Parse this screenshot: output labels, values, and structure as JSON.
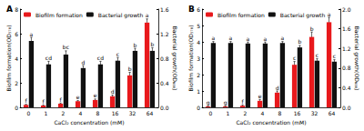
{
  "chart_data": [
    {
      "type": "bar",
      "title": "A",
      "categories": [
        "0",
        "1",
        "2",
        "4",
        "8",
        "16",
        "32",
        "64"
      ],
      "xlabel": "CaCl₂ concentration (mM)",
      "ylabel": "Biofilm formation(OD₅₇₀)",
      "y2label": "Bacterial growth(OD₆₀₀)",
      "ylim": [
        0,
        8
      ],
      "yticks": [
        0,
        2,
        4,
        6,
        8
      ],
      "y2lim": [
        0,
        1.6
      ],
      "y2ticks": [
        {
          "value": 0,
          "label": "0.0"
        },
        0.4,
        0.8,
        1.2,
        1.6
      ],
      "grid": false,
      "legend": "top-left",
      "series": [
        {
          "name": "Biofilm formation",
          "color": "#e8191c",
          "values": [
            0.2,
            0.15,
            0.3,
            0.5,
            0.6,
            0.9,
            2.6,
            6.9
          ],
          "errors": [
            0.05,
            0.05,
            0.05,
            0.05,
            0.08,
            0.1,
            0.25,
            0.3
          ],
          "annotations": [
            "f",
            "f",
            "f",
            "e",
            "e",
            "d",
            "b",
            "a"
          ]
        },
        {
          "name": "Bacterial growth",
          "color": "#111111",
          "axis": "y2",
          "values": [
            1.08,
            0.7,
            0.86,
            0.64,
            0.7,
            0.76,
            0.92,
            0.92
          ],
          "errors": [
            0.06,
            0.05,
            0.06,
            0.04,
            0.05,
            0.05,
            0.04,
            0.05
          ],
          "annotations": [
            "a",
            "cd",
            "bc",
            "d",
            "cd",
            "c",
            "b",
            "b"
          ]
        }
      ]
    },
    {
      "type": "bar",
      "title": "B",
      "categories": [
        "0",
        "1",
        "2",
        "4",
        "8",
        "16",
        "32",
        "64"
      ],
      "xlabel": "CaCl₂ concentration (mM)",
      "ylabel": "Biofilm formation(OD₅₇₀)",
      "y2label": "Bacterial growth(OD₆₀₀)",
      "ylim": [
        0,
        6
      ],
      "yticks": [
        0,
        1,
        2,
        3,
        4,
        5,
        6
      ],
      "y2lim": [
        0,
        2
      ],
      "y2ticks": [
        {
          "value": 0,
          "label": "0.0"
        },
        0.4,
        0.8,
        1.2,
        1.6,
        {
          "value": 2,
          "label": "2.0"
        }
      ],
      "grid": false,
      "legend": "top-left",
      "series": [
        {
          "name": "Biofilm formation",
          "color": "#e8191c",
          "values": [
            0.05,
            0.05,
            0.1,
            0.4,
            0.9,
            2.6,
            4.3,
            5.2
          ],
          "errors": [
            0.03,
            0.03,
            0.05,
            0.08,
            0.1,
            0.2,
            0.3,
            0.3
          ],
          "annotations": [
            "g",
            "g",
            "f",
            "e",
            "d",
            "c",
            "b",
            "a"
          ]
        },
        {
          "name": "Bacterial growth",
          "color": "#111111",
          "axis": "y2",
          "values": [
            1.31,
            1.31,
            1.3,
            1.3,
            1.31,
            1.22,
            0.95,
            0.93
          ],
          "errors": [
            0.03,
            0.03,
            0.03,
            0.03,
            0.03,
            0.04,
            0.04,
            0.04
          ],
          "annotations": [
            "a",
            "a",
            "a",
            "a",
            "a",
            "b",
            "c",
            "c"
          ]
        }
      ]
    }
  ]
}
